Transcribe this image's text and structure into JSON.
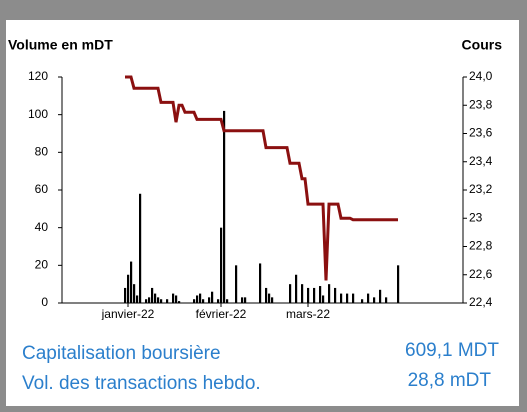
{
  "chart_data": {
    "type": "combo",
    "y_label": "Volume en mDT",
    "y2_label": "Cours",
    "categories": [
      null,
      "janvier-22",
      null,
      null,
      null,
      null,
      null,
      null,
      null,
      null,
      null,
      null,
      null,
      null,
      null,
      null,
      null,
      null,
      null,
      null,
      null,
      null,
      null,
      null,
      null,
      null,
      null,
      null,
      null,
      null,
      null,
      null,
      "février-22",
      null,
      null,
      null,
      null,
      null,
      null,
      null,
      null,
      null,
      null,
      null,
      null,
      null,
      null,
      null,
      null,
      null,
      null,
      null,
      null,
      null,
      null,
      null,
      null,
      null,
      null,
      null,
      null,
      "mars-22",
      null,
      null,
      null,
      null,
      null,
      null,
      null,
      null,
      null,
      null,
      null,
      null,
      null,
      null,
      null,
      null,
      null,
      null,
      null,
      null,
      null,
      null,
      null,
      null,
      null,
      null,
      null,
      null,
      null,
      null
    ],
    "series": [
      {
        "type": "bar",
        "color": "#000000",
        "values": [
          8,
          15,
          22,
          10,
          4,
          58,
          0,
          2,
          3,
          8,
          5,
          3,
          2,
          0,
          2,
          0,
          5,
          4,
          1,
          0,
          0,
          0,
          0,
          2,
          4,
          5,
          2,
          0,
          3,
          6,
          0,
          2,
          40,
          102,
          2,
          0,
          0,
          20,
          0,
          3,
          3,
          0,
          0,
          0,
          0,
          21,
          0,
          8,
          5,
          3,
          0,
          0,
          0,
          0,
          0,
          10,
          0,
          15,
          0,
          10,
          0,
          8,
          0,
          8,
          0,
          9,
          4,
          0,
          10,
          0,
          8,
          0,
          5,
          0,
          5,
          0,
          5,
          0,
          0,
          2,
          0,
          5,
          0,
          3,
          0,
          7,
          0,
          3,
          0,
          0,
          0,
          20
        ]
      },
      {
        "type": "line",
        "axis": "y2",
        "color": "#8b1010",
        "values": [
          24,
          24,
          24,
          23.92,
          23.92,
          23.92,
          23.92,
          23.92,
          23.92,
          23.92,
          23.92,
          23.92,
          23.82,
          23.82,
          23.82,
          23.82,
          23.82,
          23.68,
          23.8,
          23.8,
          23.75,
          23.75,
          23.75,
          23.75,
          23.7,
          23.7,
          23.7,
          23.7,
          23.7,
          23.7,
          23.7,
          23.7,
          23.7,
          23.62,
          23.62,
          23.62,
          23.62,
          23.62,
          23.62,
          23.62,
          23.62,
          23.62,
          23.62,
          23.62,
          23.62,
          23.62,
          23.62,
          23.5,
          23.5,
          23.5,
          23.5,
          23.5,
          23.5,
          23.5,
          23.5,
          23.39,
          23.39,
          23.39,
          23.39,
          23.28,
          23.28,
          23.1,
          23.1,
          23.1,
          23.1,
          23.1,
          23.1,
          22.56,
          23.1,
          23.1,
          23.1,
          23.1,
          23,
          23,
          23,
          23,
          22.99,
          22.99,
          22.99,
          22.99,
          22.99,
          22.99,
          22.99,
          22.99,
          22.99,
          22.99,
          22.99,
          22.99,
          22.99,
          22.99,
          22.99,
          22.99
        ]
      }
    ],
    "ylim": [
      0,
      120
    ],
    "yticks": [
      0,
      20,
      40,
      60,
      80,
      100,
      120
    ],
    "y2lim": [
      22.4,
      24
    ],
    "y2ticks": [
      {
        "value": 22.4,
        "label": "22,4"
      },
      {
        "value": 22.6,
        "label": "22,6"
      },
      {
        "value": 22.8,
        "label": "22,8"
      },
      23,
      {
        "value": 23.2,
        "label": "23,2"
      },
      {
        "value": 23.4,
        "label": "23,4"
      },
      {
        "value": 23.6,
        "label": "23,6"
      },
      {
        "value": 23.8,
        "label": "23,8"
      },
      {
        "value": 24,
        "label": "24,0"
      }
    ]
  },
  "stats": [
    {
      "label": "Capitalisation boursière",
      "value": "609,1 MDT"
    },
    {
      "label": "Vol. des transactions hebdo.",
      "value": "28,8 mDT"
    }
  ]
}
